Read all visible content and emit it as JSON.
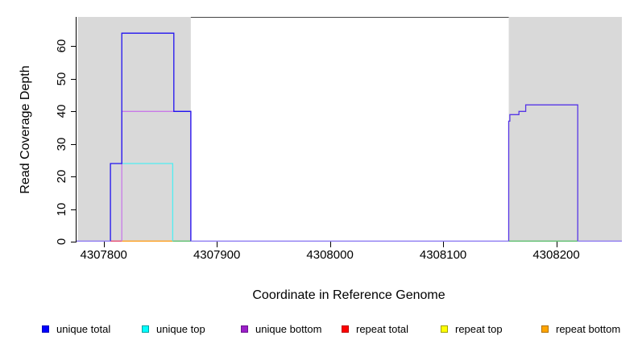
{
  "figure": {
    "x_axis_title": "Coordinate in Reference Genome",
    "y_axis_title": "Read Coverage Depth"
  },
  "legend": {
    "items": [
      {
        "label": "unique total",
        "color": "#0000ff",
        "border": "#0000bb"
      },
      {
        "label": "unique top",
        "color": "#00ffff",
        "border": "#00a0a0"
      },
      {
        "label": "unique bottom",
        "color": "#9b1fc8",
        "border": "#6d1490"
      },
      {
        "label": "repeat total",
        "color": "#ff0000",
        "border": "#bb0000"
      },
      {
        "label": "repeat top",
        "color": "#ffff00",
        "border": "#a0a000"
      },
      {
        "label": "repeat bottom",
        "color": "#ffa500",
        "border": "#b07000"
      }
    ]
  },
  "chart_data": {
    "type": "line",
    "title": "",
    "xlabel": "Coordinate in Reference Genome",
    "ylabel": "Read Coverage Depth",
    "xlim": [
      4307776,
      4308258
    ],
    "ylim": [
      0,
      69
    ],
    "x_ticks": [
      4307800,
      4307900,
      4308000,
      4308100,
      4308200
    ],
    "y_ticks": [
      0,
      10,
      20,
      30,
      40,
      50,
      60
    ],
    "grid": false,
    "legend_position": "bottom",
    "shaded_regions": [
      {
        "name": "left-gray-block",
        "x0": 4307777,
        "x1": 4307877,
        "color": "#d9d9d9"
      },
      {
        "name": "right-gray-block",
        "x0": 4308158,
        "x1": 4308258,
        "color": "#d9d9d9"
      }
    ],
    "top_border_gap": {
      "x0": 4307877,
      "x1": 4308158,
      "color": "#444444"
    },
    "series": [
      {
        "name": "unique total",
        "color": "#0000ff",
        "step_points": [
          [
            4307776,
            0
          ],
          [
            4307806,
            24
          ],
          [
            4307816,
            64
          ],
          [
            4307862,
            40
          ],
          [
            4307877,
            0
          ],
          [
            4308158,
            37
          ],
          [
            4308159,
            39
          ],
          [
            4308167,
            40
          ],
          [
            4308173,
            42
          ],
          [
            4308219,
            0
          ],
          [
            4308258,
            0
          ]
        ]
      },
      {
        "name": "unique top",
        "color": "#00ffff",
        "step_points": [
          [
            4307776,
            0
          ],
          [
            4307816,
            24
          ],
          [
            4307861,
            0
          ],
          [
            4308258,
            0
          ]
        ]
      },
      {
        "name": "unique bottom",
        "color": "#9b1fc8",
        "step_points": [
          [
            4307776,
            0
          ],
          [
            4307816,
            40
          ],
          [
            4307877,
            0
          ],
          [
            4308158,
            37
          ],
          [
            4308159,
            39
          ],
          [
            4308167,
            40
          ],
          [
            4308173,
            42
          ],
          [
            4308219,
            0
          ],
          [
            4308258,
            0
          ]
        ]
      },
      {
        "name": "repeat total",
        "color": "#ff0000",
        "step_points": [
          [
            4307776,
            0
          ],
          [
            4308258,
            0
          ]
        ]
      },
      {
        "name": "repeat top",
        "color": "#ffff00",
        "step_points": [
          [
            4307776,
            0
          ],
          [
            4308258,
            0
          ]
        ]
      },
      {
        "name": "repeat bottom",
        "color": "#ffa500",
        "step_points": [
          [
            4307776,
            0
          ],
          [
            4308258,
            0
          ]
        ]
      }
    ],
    "visible_segments": [
      {
        "name": "repeat-total-baseline",
        "color": "#e8476f",
        "points": [
          [
            4307806,
            0
          ],
          [
            4307816,
            0
          ]
        ]
      },
      {
        "name": "repeat-bottom-baseline",
        "color": "#ffa020",
        "points": [
          [
            4307816,
            0
          ],
          [
            4307861,
            0
          ]
        ]
      },
      {
        "name": "overlap-green-baseline-left",
        "color": "#5fbf6f",
        "points": [
          [
            4307861,
            0
          ],
          [
            4307877,
            0
          ]
        ]
      },
      {
        "name": "overlap-green-baseline-right",
        "color": "#5fbf6f",
        "points": [
          [
            4308158,
            0
          ],
          [
            4308219,
            0
          ]
        ]
      },
      {
        "name": "unique-top-line",
        "color": "#50eef2",
        "points": [
          [
            4307816,
            24
          ],
          [
            4307861,
            24
          ],
          [
            4307861,
            0
          ]
        ]
      },
      {
        "name": "unique-bottom-line",
        "color": "#c879e8",
        "points": [
          [
            4307816,
            0
          ],
          [
            4307816,
            40
          ],
          [
            4307862,
            40
          ],
          [
            4307877,
            40
          ],
          [
            4307877,
            0
          ]
        ]
      },
      {
        "name": "unique-total-left-box",
        "color": "#2012f0",
        "points": [
          [
            4307806,
            0
          ],
          [
            4307806,
            24
          ],
          [
            4307816,
            24
          ],
          [
            4307816,
            64
          ],
          [
            4307862,
            64
          ],
          [
            4307862,
            40
          ],
          [
            4307877,
            40
          ],
          [
            4307877,
            0
          ]
        ]
      },
      {
        "name": "right-staircase-total-bottom-overlap",
        "color": "#5636e6",
        "points": [
          [
            4308158,
            0
          ],
          [
            4308158,
            37
          ],
          [
            4308159,
            37
          ],
          [
            4308159,
            39
          ],
          [
            4308167,
            39
          ],
          [
            4308167,
            40
          ],
          [
            4308173,
            40
          ],
          [
            4308173,
            42
          ],
          [
            4308219,
            42
          ],
          [
            4308219,
            0
          ]
        ]
      },
      {
        "name": "zero-baseline-1",
        "color": "#8f7df2",
        "points": [
          [
            4307776,
            0
          ],
          [
            4307806,
            0
          ]
        ]
      },
      {
        "name": "zero-baseline-2",
        "color": "#8f7df2",
        "points": [
          [
            4307877,
            0
          ],
          [
            4308158,
            0
          ]
        ]
      },
      {
        "name": "zero-baseline-3",
        "color": "#8f7df2",
        "points": [
          [
            4308219,
            0
          ],
          [
            4308258,
            0
          ]
        ]
      }
    ]
  }
}
